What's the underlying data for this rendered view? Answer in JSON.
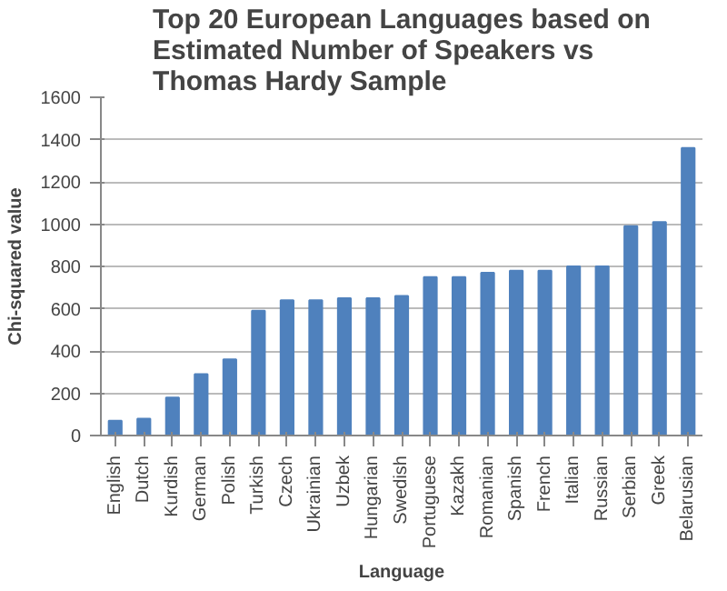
{
  "chart_data": {
    "type": "bar",
    "title": "Top 20 European Languages based on Estimated Number of Speakers vs Thomas Hardy Sample",
    "xlabel": "Language",
    "ylabel": "Chi-squared value",
    "categories": [
      "English",
      "Dutch",
      "Kurdish",
      "German",
      "Polish",
      "Turkish",
      "Czech",
      "Ukrainian",
      "Uzbek",
      "Hungarian",
      "Swedish",
      "Portuguese",
      "Kazakh",
      "Romanian",
      "Spanish",
      "French",
      "Italian",
      "Russian",
      "Serbian",
      "Greek",
      "Belarusian"
    ],
    "values": [
      70,
      80,
      180,
      290,
      360,
      590,
      640,
      640,
      650,
      650,
      660,
      750,
      750,
      770,
      780,
      780,
      800,
      800,
      990,
      1010,
      1360
    ],
    "color": "#4f81bd",
    "ylim": [
      0,
      1600
    ],
    "yticks": [
      0,
      200,
      400,
      600,
      800,
      1000,
      1200,
      1400,
      1600
    ],
    "grid": "y"
  }
}
